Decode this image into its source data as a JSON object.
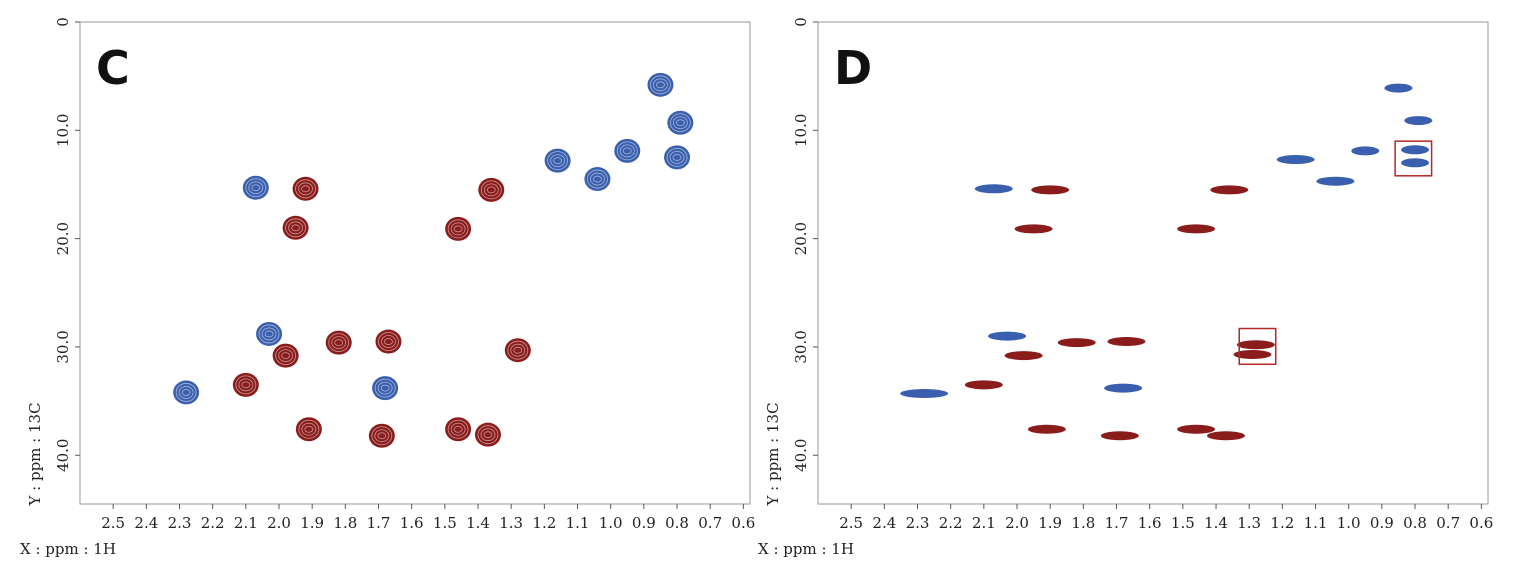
{
  "chart_data": [
    {
      "type": "scatter",
      "panel_label": "C",
      "xlabel": "X : ppm : 1H",
      "ylabel": "Y : ppm : 13C",
      "xlim": [
        2.6,
        0.58
      ],
      "ylim": [
        0,
        44.5
      ],
      "x_ticks": [
        "2.5",
        "2.4",
        "2.3",
        "2.2",
        "2.1",
        "2.0",
        "1.9",
        "1.8",
        "1.7",
        "1.6",
        "1.5",
        "1.4",
        "1.3",
        "1.2",
        "1.1",
        "1.0",
        "0.9",
        "0.8",
        "0.7",
        "0.6"
      ],
      "y_ticks": [
        "0",
        "10.0",
        "20.0",
        "30.0",
        "40.0"
      ],
      "colors": {
        "blue": "#3a5fae",
        "red": "#8b1c1c"
      },
      "series": [
        {
          "color": "blue",
          "points": [
            {
              "x": 0.85,
              "y": 5.8
            },
            {
              "x": 0.79,
              "y": 9.3
            },
            {
              "x": 0.8,
              "y": 12.5
            },
            {
              "x": 0.95,
              "y": 11.9
            },
            {
              "x": 1.16,
              "y": 12.8
            },
            {
              "x": 1.04,
              "y": 14.5
            },
            {
              "x": 2.07,
              "y": 15.3
            },
            {
              "x": 2.03,
              "y": 28.8
            },
            {
              "x": 2.28,
              "y": 34.2
            },
            {
              "x": 1.68,
              "y": 33.8
            }
          ]
        },
        {
          "color": "red",
          "points": [
            {
              "x": 1.92,
              "y": 15.4
            },
            {
              "x": 1.36,
              "y": 15.5
            },
            {
              "x": 1.95,
              "y": 19.0
            },
            {
              "x": 1.46,
              "y": 19.1
            },
            {
              "x": 1.82,
              "y": 29.6
            },
            {
              "x": 1.67,
              "y": 29.5
            },
            {
              "x": 1.28,
              "y": 30.3
            },
            {
              "x": 1.98,
              "y": 30.8
            },
            {
              "x": 2.1,
              "y": 33.5
            },
            {
              "x": 1.91,
              "y": 37.6
            },
            {
              "x": 1.69,
              "y": 38.2
            },
            {
              "x": 1.46,
              "y": 37.6
            },
            {
              "x": 1.37,
              "y": 38.1
            }
          ]
        }
      ]
    },
    {
      "type": "scatter",
      "panel_label": "D",
      "xlabel": "X : ppm : 1H",
      "ylabel": "Y : ppm : 13C",
      "xlim": [
        2.6,
        0.58
      ],
      "ylim": [
        0,
        44.5
      ],
      "x_ticks": [
        "2.5",
        "2.4",
        "2.3",
        "2.2",
        "2.1",
        "2.0",
        "1.9",
        "1.8",
        "1.7",
        "1.6",
        "1.5",
        "1.4",
        "1.3",
        "1.2",
        "1.1",
        "1.0",
        "0.9",
        "0.8",
        "0.7",
        "0.6"
      ],
      "y_ticks": [
        "0",
        "10.0",
        "20.0",
        "30.0",
        "40.0"
      ],
      "colors": {
        "blue": "#3a5fae",
        "red": "#8b1c1c"
      },
      "series": [
        {
          "color": "blue",
          "points": [
            {
              "x": 0.85,
              "y": 6.1
            },
            {
              "x": 0.79,
              "y": 9.1
            },
            {
              "x": 0.8,
              "y": 11.8
            },
            {
              "x": 0.8,
              "y": 13.0
            },
            {
              "x": 0.95,
              "y": 11.9
            },
            {
              "x": 1.16,
              "y": 12.7
            },
            {
              "x": 1.04,
              "y": 14.7
            },
            {
              "x": 2.07,
              "y": 15.4
            },
            {
              "x": 2.03,
              "y": 29.0
            },
            {
              "x": 2.28,
              "y": 34.3
            },
            {
              "x": 1.68,
              "y": 33.8
            }
          ]
        },
        {
          "color": "red",
          "points": [
            {
              "x": 1.9,
              "y": 15.5
            },
            {
              "x": 1.36,
              "y": 15.5
            },
            {
              "x": 1.95,
              "y": 19.1
            },
            {
              "x": 1.46,
              "y": 19.1
            },
            {
              "x": 1.82,
              "y": 29.6
            },
            {
              "x": 1.67,
              "y": 29.5
            },
            {
              "x": 1.28,
              "y": 29.8
            },
            {
              "x": 1.29,
              "y": 30.7
            },
            {
              "x": 1.98,
              "y": 30.8
            },
            {
              "x": 2.1,
              "y": 33.5
            },
            {
              "x": 1.91,
              "y": 37.6
            },
            {
              "x": 1.69,
              "y": 38.2
            },
            {
              "x": 1.46,
              "y": 37.6
            },
            {
              "x": 1.37,
              "y": 38.2
            }
          ]
        }
      ],
      "highlight_boxes": [
        {
          "x_range": [
            0.86,
            0.75
          ],
          "y_range": [
            11.0,
            14.2
          ]
        },
        {
          "x_range": [
            1.33,
            1.22
          ],
          "y_range": [
            28.3,
            31.6
          ]
        }
      ]
    }
  ]
}
